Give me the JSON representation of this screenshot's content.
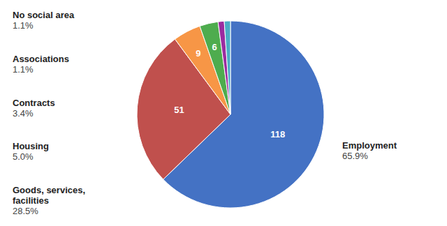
{
  "chart_data": {
    "type": "pie",
    "categories": [
      "Employment",
      "Goods, services,\nfacilities",
      "Housing",
      "Contracts",
      "Associations",
      "No social area"
    ],
    "values": [
      118,
      51,
      9,
      6,
      2,
      2
    ],
    "colors": [
      "#4472C4",
      "#C0504D",
      "#F79646",
      "#4EAC4E",
      "#9B2CA0",
      "#4BACC6"
    ],
    "data_labels": true,
    "value_labels": [
      "118",
      "51",
      "9",
      "6",
      null,
      null
    ],
    "shares": [
      65.9,
      28.5,
      5.0,
      3.4,
      1.1,
      1.1
    ],
    "share_labels": [
      "65.9%",
      "28.5%",
      "5.0%",
      "3.4%",
      "1.1%",
      "1.1%"
    ]
  }
}
